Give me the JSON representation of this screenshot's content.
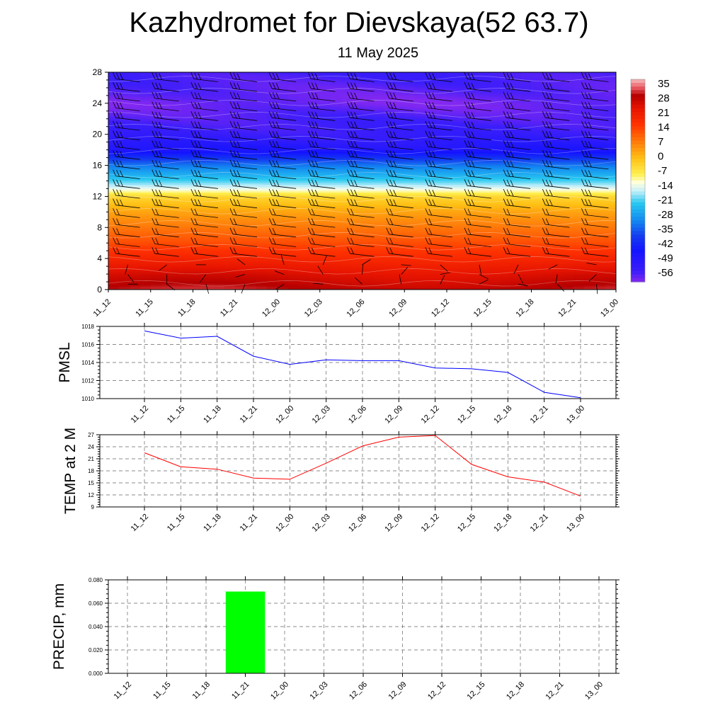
{
  "title": "Kazhydromet for Dievskaya(52 63.7)",
  "subtitle": "11 May 2025",
  "time_labels": [
    "11_12",
    "11_15",
    "11_18",
    "11_21",
    "12_00",
    "12_03",
    "12_06",
    "12_09",
    "12_12",
    "12_15",
    "12_18",
    "12_21",
    "13_00"
  ],
  "chart_data": [
    {
      "type": "heatmap",
      "name": "temperature-cross-section",
      "x": [
        "11_12",
        "11_15",
        "11_18",
        "11_21",
        "12_00",
        "12_03",
        "12_06",
        "12_09",
        "12_12",
        "12_15",
        "12_18",
        "12_21",
        "13_00"
      ],
      "ylim": [
        0,
        28
      ],
      "yticks": [
        0,
        4,
        8,
        12,
        16,
        20,
        24,
        28
      ],
      "colorbar": {
        "labels": [
          35,
          28,
          21,
          14,
          7,
          0,
          -7,
          -14,
          -21,
          -28,
          -35,
          -42,
          -49,
          -56
        ],
        "range": [
          -60,
          38
        ]
      },
      "profile": [
        {
          "h": 0,
          "t": 30
        },
        {
          "h": 2,
          "t": 25
        },
        {
          "h": 4,
          "t": 19
        },
        {
          "h": 6,
          "t": 13
        },
        {
          "h": 8,
          "t": 8
        },
        {
          "h": 10,
          "t": 3
        },
        {
          "h": 12,
          "t": -4
        },
        {
          "h": 13,
          "t": -14
        },
        {
          "h": 14,
          "t": -21
        },
        {
          "h": 16,
          "t": -32
        },
        {
          "h": 18,
          "t": -48
        },
        {
          "h": 20,
          "t": -54
        },
        {
          "h": 22,
          "t": -56
        },
        {
          "h": 24,
          "t": -59
        },
        {
          "h": 26,
          "t": -57
        },
        {
          "h": 28,
          "t": -55
        }
      ],
      "wind_barbs": true
    },
    {
      "type": "line",
      "name": "pmsl",
      "ylabel": "PMSL",
      "x": [
        "11_12",
        "11_15",
        "11_18",
        "11_21",
        "12_00",
        "12_03",
        "12_06",
        "12_09",
        "12_12",
        "12_15",
        "12_18",
        "12_21",
        "13_00"
      ],
      "values": [
        1017.5,
        1016.7,
        1016.9,
        1014.7,
        1013.8,
        1014.3,
        1014.2,
        1014.2,
        1013.4,
        1013.3,
        1012.9,
        1010.7,
        1010.1
      ],
      "ylim": [
        1010,
        1018
      ],
      "yticks": [
        1010,
        1012,
        1014,
        1016,
        1018
      ],
      "color": "#0000ff",
      "grid": true
    },
    {
      "type": "line",
      "name": "temp-2m",
      "ylabel": "TEMP at 2 M",
      "x": [
        "11_12",
        "11_15",
        "11_18",
        "11_21",
        "12_00",
        "12_03",
        "12_06",
        "12_09",
        "12_12",
        "12_15",
        "12_18",
        "12_21",
        "13_00"
      ],
      "values": [
        22.5,
        19.0,
        18.4,
        16.2,
        15.9,
        19.9,
        24.2,
        26.4,
        26.8,
        19.6,
        16.5,
        15.2,
        11.7
      ],
      "ylim": [
        9,
        27
      ],
      "yticks": [
        9,
        12,
        15,
        18,
        21,
        24,
        27
      ],
      "color": "#ff0000",
      "grid": true
    },
    {
      "type": "bar",
      "name": "precip",
      "ylabel": "PRECIP, mm",
      "x": [
        "11_12",
        "11_15",
        "11_18",
        "11_21",
        "12_00",
        "12_03",
        "12_06",
        "12_09",
        "12_12",
        "12_15",
        "12_18",
        "12_21",
        "13_00"
      ],
      "values": [
        0,
        0,
        0,
        0.07,
        0,
        0,
        0,
        0,
        0,
        0,
        0,
        0,
        0
      ],
      "ylim": [
        0,
        0.08
      ],
      "yticks": [
        "0.000",
        "0.020",
        "0.040",
        "0.060",
        "0.080"
      ],
      "color": "#00ff00",
      "grid": true
    }
  ]
}
